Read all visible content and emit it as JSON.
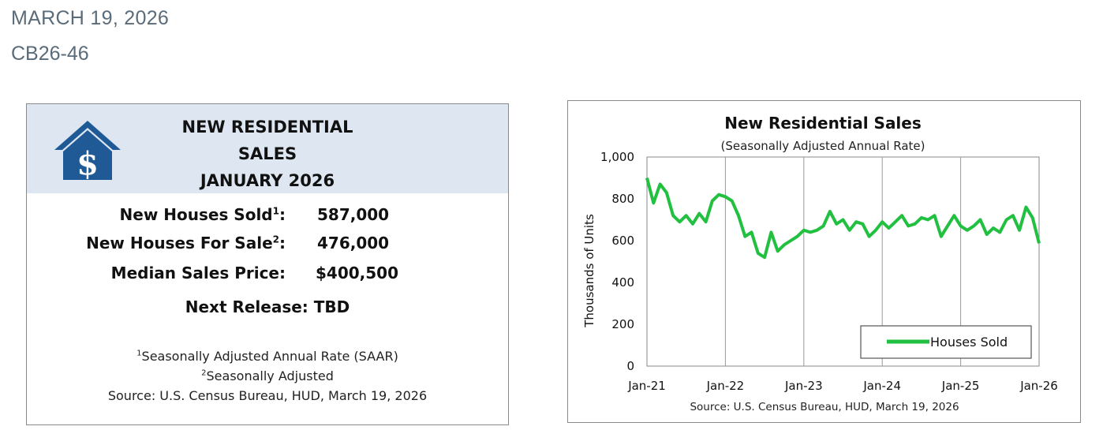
{
  "header": {
    "date": "MARCH 19, 2026",
    "release_id": "CB26-46"
  },
  "summary": {
    "icon": "house-dollar-icon",
    "title_lines": [
      "NEW RESIDENTIAL",
      "SALES",
      "JANUARY 2026"
    ],
    "stats": [
      {
        "label": "New Houses Sold",
        "sup": "1",
        "value": "587,000"
      },
      {
        "label": "New Houses For Sale",
        "sup": "2",
        "value": "476,000"
      },
      {
        "label": "Median Sales Price",
        "sup": "",
        "value": "$400,500"
      }
    ],
    "next_release": "Next Release:  TBD",
    "footnotes": [
      {
        "sup": "1",
        "text": "Seasonally Adjusted Annual Rate (SAAR)"
      },
      {
        "sup": "2",
        "text": "Seasonally Adjusted"
      },
      {
        "sup": "",
        "text": "Source:  U.S. Census Bureau, HUD, March 19, 2026"
      }
    ],
    "colors": {
      "header_bg": "#dde6f1",
      "icon": "#1f5a96"
    }
  },
  "chart_data": {
    "type": "line",
    "title": "New Residential Sales",
    "subtitle": "(Seasonally Adjusted Annual Rate)",
    "ylabel": "Thousands of Units",
    "xlabel": "",
    "ylim": [
      0,
      1000
    ],
    "yticks": [
      0,
      200,
      400,
      600,
      800,
      1000
    ],
    "ytick_labels": [
      "0",
      "200",
      "400",
      "600",
      "800",
      "1,000"
    ],
    "x_start": "Jan-21",
    "x_end": "Jan-26",
    "xtick_labels": [
      "Jan-21",
      "Jan-22",
      "Jan-23",
      "Jan-24",
      "Jan-25",
      "Jan-26"
    ],
    "grid": "vertical",
    "legend": "bottom-right",
    "source": "Source:  U.S. Census Bureau, HUD, March 19, 2026",
    "color": "#22c041",
    "series": [
      {
        "name": "Houses Sold",
        "values": [
          900,
          780,
          870,
          830,
          720,
          690,
          720,
          680,
          730,
          690,
          790,
          820,
          810,
          790,
          720,
          620,
          640,
          540,
          520,
          640,
          550,
          580,
          600,
          620,
          650,
          640,
          650,
          670,
          740,
          680,
          700,
          650,
          690,
          680,
          620,
          650,
          690,
          660,
          690,
          720,
          670,
          680,
          710,
          700,
          720,
          620,
          670,
          720,
          670,
          650,
          670,
          700,
          630,
          660,
          640,
          700,
          720,
          650,
          760,
          710,
          587
        ]
      }
    ]
  }
}
